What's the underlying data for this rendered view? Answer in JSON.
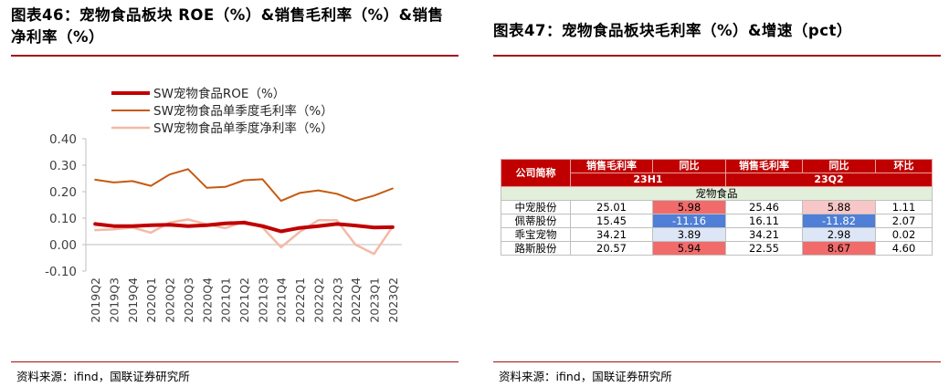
{
  "left": {
    "title": "图表46：宠物食品板块 ROE（%）&销售毛利率（%）&销售净利率（%）",
    "source": "资料来源：ifind，国联证券研究所"
  },
  "right": {
    "title": "图表47：宠物食品板块毛利率（%）&增速（pct）",
    "source": "资料来源：ifind，国联证券研究所",
    "table": {
      "head1": [
        "公司简称",
        "销售毛利率",
        "同比",
        "销售毛利率",
        "同比",
        "环比"
      ],
      "period1": "23H1",
      "period2": "23Q2",
      "sector": "宠物食品",
      "rows": [
        {
          "name": "中宠股份",
          "gm1": "25.01",
          "yoy1": "5.98",
          "gm2": "25.46",
          "yoy2": "5.88",
          "qoq": "1.11"
        },
        {
          "name": "佩蒂股份",
          "gm1": "15.45",
          "yoy1": "-11.16",
          "gm2": "16.11",
          "yoy2": "-11.82",
          "qoq": "2.07"
        },
        {
          "name": "乖宝宠物",
          "gm1": "34.21",
          "yoy1": "3.89",
          "gm2": "34.21",
          "yoy2": "2.98",
          "qoq": "0.02"
        },
        {
          "name": "路斯股份",
          "gm1": "20.57",
          "yoy1": "5.94",
          "gm2": "22.55",
          "yoy2": "8.67",
          "qoq": "4.60"
        }
      ],
      "colors": {
        "header": "#c00000",
        "strong_red": "#f26b6b",
        "light_red": "#f7c6c6",
        "strong_blue": "#4f7fd6",
        "light_blue": "#dde6f6",
        "sector": "#e2efda"
      }
    }
  },
  "chart_data": {
    "type": "line",
    "title": "宠物食品板块 ROE（%）&销售毛利率（%）&销售净利率（%）",
    "categories": [
      "2019Q2",
      "2019Q3",
      "2019Q4",
      "2020Q1",
      "2020Q2",
      "2020Q3",
      "2020Q4",
      "2021Q1",
      "2021Q2",
      "2021Q3",
      "2021Q4",
      "2022Q1",
      "2022Q2",
      "2022Q3",
      "2022Q4",
      "2023Q1",
      "2023Q2"
    ],
    "ylim": [
      -0.1,
      0.4
    ],
    "yticks": [
      -0.1,
      0.0,
      0.1,
      0.2,
      0.3,
      0.4
    ],
    "ytick_labels": [
      "-0.10",
      "0.00",
      "0.10",
      "0.20",
      "0.30",
      "0.40"
    ],
    "legend_position": "top-left",
    "grid": false,
    "series": [
      {
        "name": "SW宠物食品ROE（%）",
        "color": "#c00000",
        "width": 4,
        "values": [
          0.078,
          0.07,
          0.07,
          0.073,
          0.075,
          0.07,
          0.073,
          0.08,
          0.083,
          0.07,
          0.05,
          0.063,
          0.07,
          0.078,
          0.072,
          0.065,
          0.066
        ]
      },
      {
        "name": "SW宠物食品单季度毛利率（%）",
        "color": "#c55a11",
        "width": 2,
        "values": [
          0.245,
          0.235,
          0.24,
          0.222,
          0.265,
          0.285,
          0.215,
          0.218,
          0.243,
          0.247,
          0.165,
          0.195,
          0.205,
          0.192,
          0.165,
          0.185,
          0.212
        ]
      },
      {
        "name": "SW宠物食品单季度净利率（%）",
        "color": "#f4b9a6",
        "width": 2.5,
        "values": [
          0.055,
          0.058,
          0.065,
          0.045,
          0.083,
          0.095,
          0.077,
          0.062,
          0.088,
          0.065,
          -0.01,
          0.048,
          0.092,
          0.092,
          0.0,
          -0.035,
          0.068
        ]
      }
    ]
  }
}
